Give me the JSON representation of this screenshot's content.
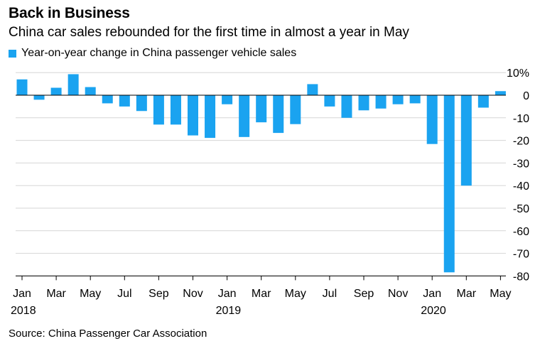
{
  "header": {
    "title": "Back in Business",
    "subtitle": "China car sales rebounded for the first time in almost a year in May"
  },
  "source": "Source: China Passenger Car Association",
  "colors": {
    "bar": "#1aa3f0",
    "grid": "#d6d6d6",
    "zero": "#000000",
    "text": "#000000"
  },
  "chart_data": {
    "type": "bar",
    "title": "Back in Business",
    "subtitle": "China car sales rebounded for the first time in almost a year in May",
    "xlabel": "",
    "ylabel": "",
    "ylim": [
      -80,
      10
    ],
    "yticks": [
      10,
      0,
      -10,
      -20,
      -30,
      -40,
      -50,
      -60,
      -70,
      -80
    ],
    "ytick_labels": [
      "10%",
      "0",
      "-10",
      "-20",
      "-30",
      "-40",
      "-50",
      "-60",
      "-70",
      "-80"
    ],
    "grid": true,
    "legend": {
      "position": "top-left",
      "label": "Year-on-year change in China passenger vehicle sales"
    },
    "categories": [
      "Jan 2018",
      "Feb 2018",
      "Mar 2018",
      "Apr 2018",
      "May 2018",
      "Jun 2018",
      "Jul 2018",
      "Aug 2018",
      "Sep 2018",
      "Oct 2018",
      "Nov 2018",
      "Dec 2018",
      "Jan 2019",
      "Feb 2019",
      "Mar 2019",
      "Apr 2019",
      "May 2019",
      "Jun 2019",
      "Jul 2019",
      "Aug 2019",
      "Sep 2019",
      "Oct 2019",
      "Nov 2019",
      "Dec 2019",
      "Jan 2020",
      "Feb 2020",
      "Mar 2020",
      "Apr 2020",
      "May 2020"
    ],
    "values": [
      7,
      -2,
      3.3,
      9.3,
      3.6,
      -3.6,
      -5,
      -7,
      -13,
      -13,
      -17.8,
      -18.9,
      -4,
      -18.5,
      -12,
      -16.7,
      -12.8,
      4.9,
      -5,
      -10,
      -6.7,
      -5.9,
      -4,
      -3.6,
      -21.6,
      -78.4,
      -40,
      -5.5,
      1.8
    ],
    "xtick_labels": [
      {
        "index": 0,
        "month": "Jan",
        "year": "2018"
      },
      {
        "index": 2,
        "month": "Mar",
        "year": ""
      },
      {
        "index": 4,
        "month": "May",
        "year": ""
      },
      {
        "index": 6,
        "month": "Jul",
        "year": ""
      },
      {
        "index": 8,
        "month": "Sep",
        "year": ""
      },
      {
        "index": 10,
        "month": "Nov",
        "year": ""
      },
      {
        "index": 12,
        "month": "Jan",
        "year": "2019"
      },
      {
        "index": 14,
        "month": "Mar",
        "year": ""
      },
      {
        "index": 16,
        "month": "May",
        "year": ""
      },
      {
        "index": 18,
        "month": "Jul",
        "year": ""
      },
      {
        "index": 20,
        "month": "Sep",
        "year": ""
      },
      {
        "index": 22,
        "month": "Nov",
        "year": ""
      },
      {
        "index": 24,
        "month": "Jan",
        "year": "2020"
      },
      {
        "index": 26,
        "month": "Mar",
        "year": ""
      },
      {
        "index": 28,
        "month": "May",
        "year": ""
      }
    ]
  }
}
